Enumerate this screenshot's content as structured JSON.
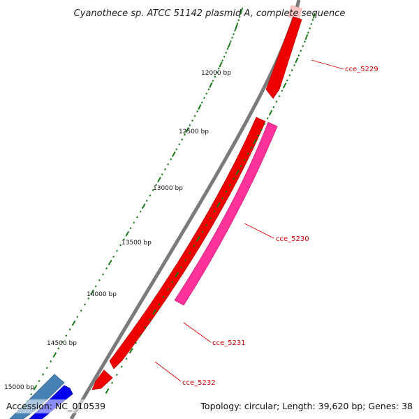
{
  "title": "Cyanothece sp. ATCC 51142 plasmid A, complete sequence",
  "footer": {
    "accession": "Accession: NC_010539",
    "summary": "Topology: circular; Length: 39,620 bp; Genes: 38"
  },
  "colors": {
    "backbone": "#888888",
    "tick": "#1a7a1a",
    "label_text": "#cc0000",
    "leader_line": "#dd0000",
    "gene_red": "#ee0000",
    "gene_magenta": "#ff3399",
    "gene_pink": "#ffc8c8",
    "gene_steelblue": "#4682b4",
    "gene_blue": "#0000ee"
  },
  "map": {
    "bp_labels": [
      "12000 bp",
      "12500 bp",
      "13000 bp",
      "13500 bp",
      "14000 bp",
      "14500 bp",
      "15000 bp"
    ],
    "genes": [
      {
        "name": "cce_5229",
        "color": "#ee0000"
      },
      {
        "name": "cce_5230",
        "color": "#ff3399"
      },
      {
        "name": "cce_5231",
        "color": "#ee0000"
      },
      {
        "name": "cce_5232",
        "color": "#ee0000"
      }
    ],
    "unlabeled_features": [
      {
        "color": "#ffc8c8"
      },
      {
        "color": "#4682b4"
      },
      {
        "color": "#0000ee"
      }
    ]
  }
}
